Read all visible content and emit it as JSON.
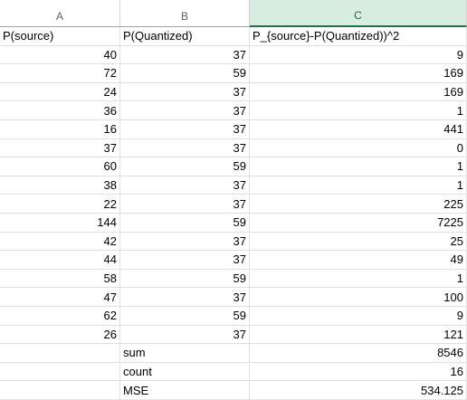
{
  "columns": [
    "A",
    "B",
    "C"
  ],
  "headers": [
    "P(source)",
    "P(Quantized)",
    "P_{source}-P(Quantized))^2"
  ],
  "rows": [
    [
      "40",
      "37",
      "9"
    ],
    [
      "72",
      "59",
      "169"
    ],
    [
      "24",
      "37",
      "169"
    ],
    [
      "36",
      "37",
      "1"
    ],
    [
      "16",
      "37",
      "441"
    ],
    [
      "37",
      "37",
      "0"
    ],
    [
      "60",
      "59",
      "1"
    ],
    [
      "38",
      "37",
      "1"
    ],
    [
      "22",
      "37",
      "225"
    ],
    [
      "144",
      "59",
      "7225"
    ],
    [
      "42",
      "37",
      "25"
    ],
    [
      "44",
      "37",
      "49"
    ],
    [
      "58",
      "59",
      "1"
    ],
    [
      "47",
      "37",
      "100"
    ],
    [
      "62",
      "59",
      "9"
    ],
    [
      "26",
      "37",
      "121"
    ]
  ],
  "summary": [
    {
      "label": "sum",
      "value": "8546"
    },
    {
      "label": "count",
      "value": "16"
    },
    {
      "label": "MSE",
      "value": "534.125"
    }
  ]
}
